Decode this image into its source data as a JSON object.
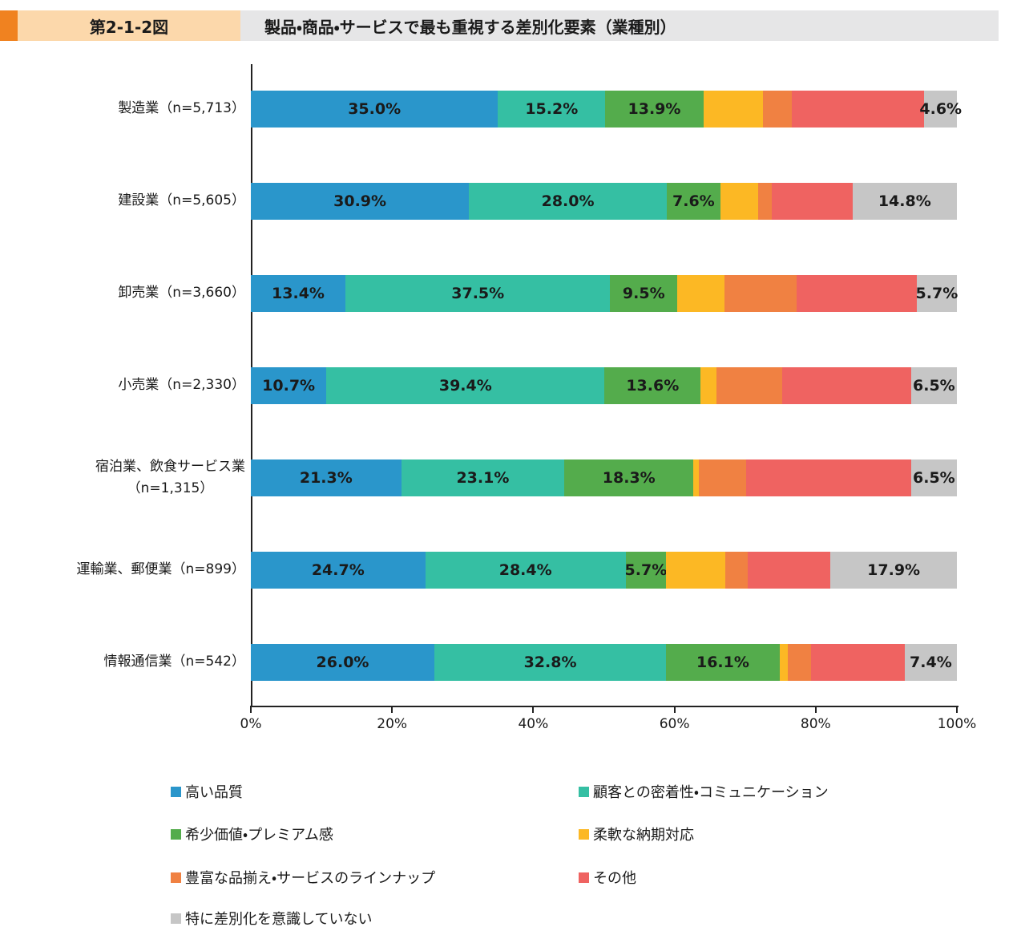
{
  "header": {
    "figure_tag": "第2-1-2図",
    "title": "製品・商品・サービスで最も重視する差別化要素（業種別）",
    "accent_color": "#f08220",
    "tag_bg_color": "#fcd8ab",
    "title_bg_color": "#e6e6e7"
  },
  "chart_data": {
    "type": "bar",
    "variant": "horizontal-stacked",
    "unit": "%",
    "xlim": [
      0,
      100
    ],
    "x_tick_values": [
      0,
      20,
      40,
      60,
      80,
      100
    ],
    "x_tick_labels": [
      "0%",
      "20%",
      "40%",
      "60%",
      "80%",
      "100%"
    ],
    "grid": false,
    "legend_position": "bottom",
    "categories": [
      "製造業（n=5,713）",
      "建設業（n=5,605）",
      "卸売業（n=3,660）",
      "小売業（n=2,330）",
      "宿泊業、飲食サービス業\n（n=1,315）",
      "運輸業、郵便業（n=899）",
      "情報通信業（n=542）"
    ],
    "series": [
      {
        "name": "高い品質",
        "color": "#2a96cb",
        "labeled": true,
        "values": [
          35.0,
          30.9,
          13.4,
          10.7,
          21.3,
          24.7,
          26.0
        ]
      },
      {
        "name": "顧客との密着性・コミュニケーション",
        "color": "#35bfa3",
        "labeled": true,
        "values": [
          15.2,
          28.0,
          37.5,
          39.4,
          23.1,
          28.4,
          32.8
        ]
      },
      {
        "name": "希少価値・プレミアム感",
        "color": "#54ac4c",
        "labeled": true,
        "values": [
          13.9,
          7.6,
          9.5,
          13.6,
          18.3,
          5.7,
          16.1
        ]
      },
      {
        "name": "柔軟な納期対応",
        "color": "#fcb824",
        "labeled": false,
        "values": [
          8.4,
          5.3,
          6.7,
          2.2,
          0.8,
          8.4,
          1.2
        ]
      },
      {
        "name": "豊富な品揃え・サービスのラインナップ",
        "color": "#f08142",
        "labeled": false,
        "values": [
          4.1,
          2.0,
          10.2,
          9.3,
          6.7,
          3.2,
          3.2
        ]
      },
      {
        "name": "その他",
        "color": "#ef6361",
        "labeled": false,
        "values": [
          18.8,
          11.4,
          17.0,
          18.3,
          23.3,
          11.7,
          13.3
        ]
      },
      {
        "name": "特に差別化を意識していない",
        "color": "#c6c6c6",
        "labeled": true,
        "values": [
          4.6,
          14.8,
          5.7,
          6.5,
          6.5,
          17.9,
          7.4
        ]
      }
    ]
  }
}
